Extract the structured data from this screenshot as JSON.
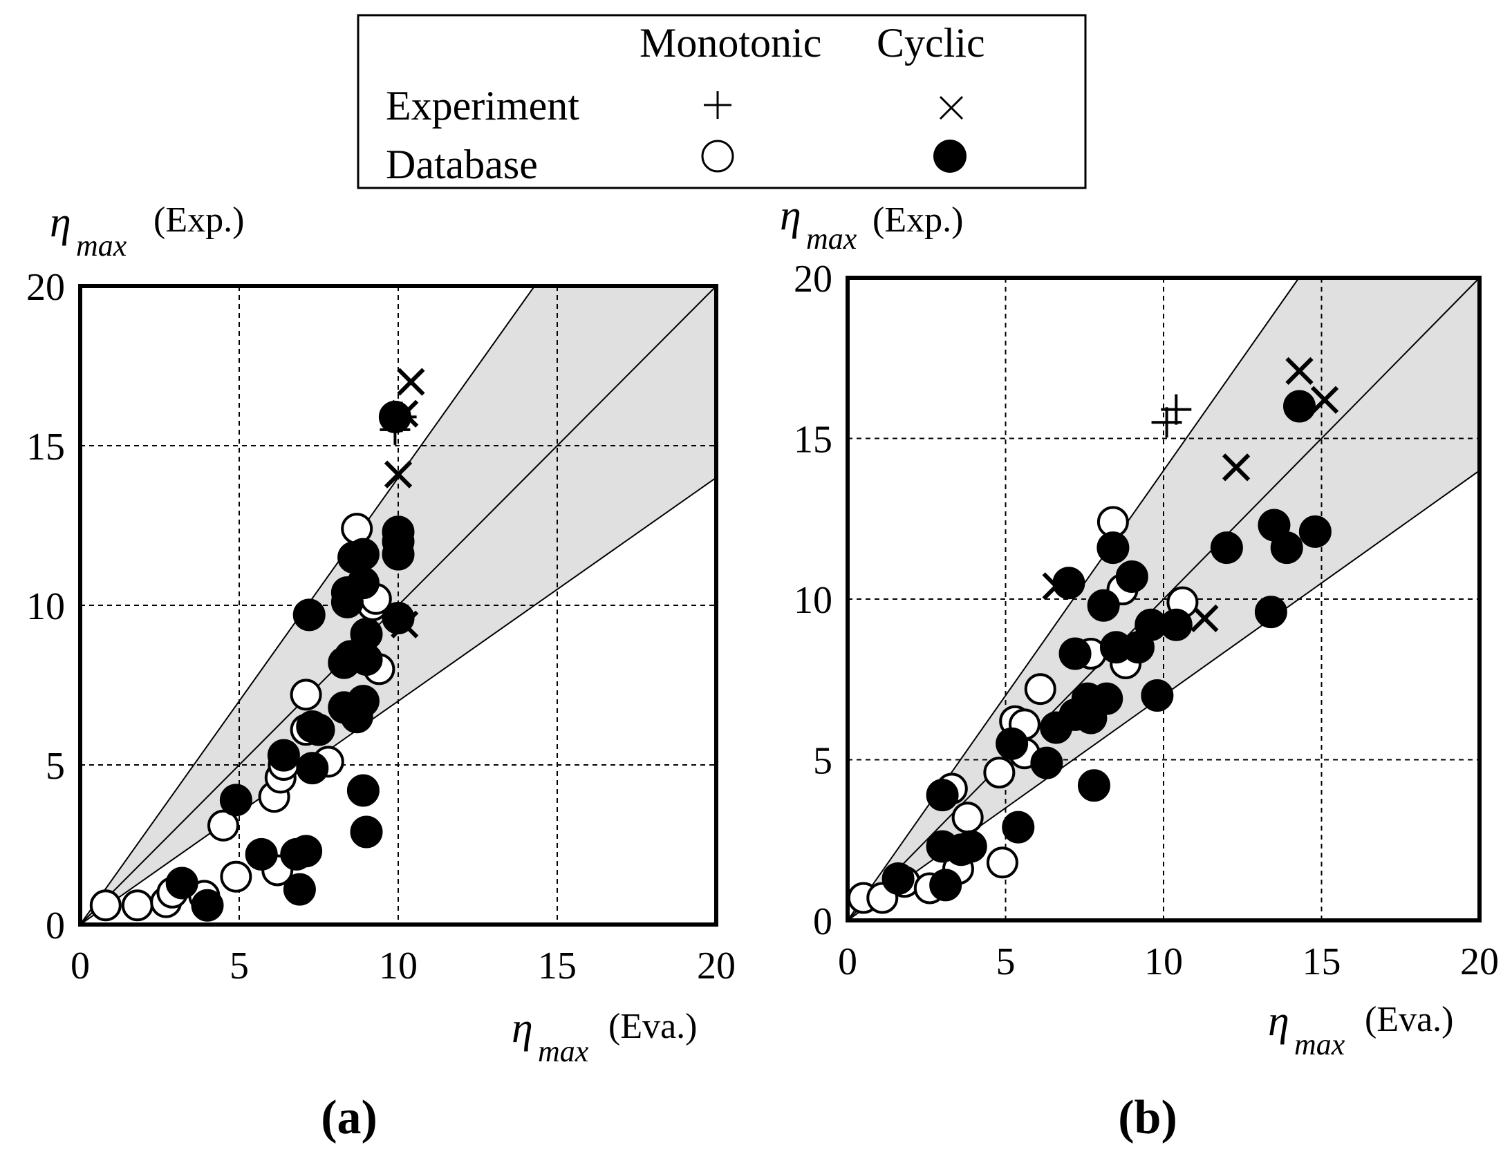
{
  "legend": {
    "col_monotonic": "Monotonic",
    "col_cyclic": "Cyclic",
    "row_experiment": "Experiment",
    "row_database": "Database"
  },
  "colors": {
    "band": "#e0e0e0",
    "ink": "#000000",
    "open_fill": "#ffffff"
  },
  "chart_data": [
    {
      "type": "scatter",
      "panel_label": "(a)",
      "ylabel_symbol": "η",
      "ylabel_sub": "max",
      "ylabel_note": "(Exp.)",
      "xlabel_symbol": "η",
      "xlabel_sub": "max",
      "xlabel_note": "(Eva.)",
      "xlim": [
        0,
        20
      ],
      "ylim": [
        0,
        20
      ],
      "xticks": [
        0,
        5,
        10,
        15,
        20
      ],
      "yticks": [
        0,
        5,
        10,
        15,
        20
      ],
      "tick_labels": [
        "0",
        "5",
        "10",
        "15",
        "20"
      ],
      "grid": true,
      "reference_lines": [
        1.4,
        1.0,
        0.7
      ],
      "shaded_band": [
        0.7,
        1.4
      ],
      "series": [
        {
          "name": "Experiment Monotonic",
          "marker": "plus",
          "points": [
            [
              9.9,
              15.5
            ],
            [
              10.1,
              15.9
            ]
          ]
        },
        {
          "name": "Experiment Cyclic",
          "marker": "cross",
          "points": [
            [
              10.4,
              17.0
            ],
            [
              10.2,
              16.0
            ],
            [
              10.0,
              14.1
            ],
            [
              10.2,
              9.4
            ]
          ]
        },
        {
          "name": "Database Monotonic",
          "marker": "open_circle",
          "points": [
            [
              0.8,
              0.6
            ],
            [
              1.8,
              0.6
            ],
            [
              2.7,
              0.7
            ],
            [
              2.9,
              1.0
            ],
            [
              3.9,
              0.9
            ],
            [
              4.9,
              1.5
            ],
            [
              4.5,
              3.1
            ],
            [
              6.1,
              4.0
            ],
            [
              6.3,
              4.6
            ],
            [
              6.4,
              5.0
            ],
            [
              6.2,
              1.7
            ],
            [
              7.8,
              5.1
            ],
            [
              7.1,
              6.1
            ],
            [
              7.1,
              7.2
            ],
            [
              8.7,
              12.4
            ],
            [
              9.2,
              10.0
            ],
            [
              9.3,
              10.2
            ],
            [
              9.4,
              8.0
            ]
          ]
        },
        {
          "name": "Database Cyclic",
          "marker": "filled_circle",
          "points": [
            [
              3.2,
              1.3
            ],
            [
              4.0,
              0.6
            ],
            [
              4.9,
              3.9
            ],
            [
              5.7,
              2.2
            ],
            [
              6.4,
              5.3
            ],
            [
              6.8,
              2.2
            ],
            [
              6.9,
              1.1
            ],
            [
              7.1,
              2.3
            ],
            [
              7.2,
              9.7
            ],
            [
              7.3,
              4.9
            ],
            [
              7.3,
              6.2
            ],
            [
              7.5,
              6.1
            ],
            [
              8.3,
              6.8
            ],
            [
              8.3,
              8.2
            ],
            [
              8.4,
              10.4
            ],
            [
              8.4,
              10.1
            ],
            [
              8.5,
              8.4
            ],
            [
              8.6,
              11.5
            ],
            [
              8.7,
              6.5
            ],
            [
              8.9,
              11.6
            ],
            [
              8.9,
              10.7
            ],
            [
              8.9,
              7.0
            ],
            [
              8.9,
              4.2
            ],
            [
              9.0,
              9.1
            ],
            [
              9.0,
              8.3
            ],
            [
              9.0,
              2.9
            ],
            [
              9.9,
              15.9
            ],
            [
              10.0,
              12.3
            ],
            [
              10.0,
              12.0
            ],
            [
              10.0,
              11.6
            ],
            [
              10.0,
              9.6
            ]
          ]
        }
      ]
    },
    {
      "type": "scatter",
      "panel_label": "(b)",
      "ylabel_symbol": "η",
      "ylabel_sub": "max",
      "ylabel_note": "(Exp.)",
      "xlabel_symbol": "η",
      "xlabel_sub": "max",
      "xlabel_note": "(Eva.)",
      "xlim": [
        0,
        20
      ],
      "ylim": [
        0,
        20
      ],
      "xticks": [
        0,
        5,
        10,
        15,
        20
      ],
      "yticks": [
        0,
        5,
        10,
        15,
        20
      ],
      "tick_labels": [
        "0",
        "5",
        "10",
        "15",
        "20"
      ],
      "grid": true,
      "reference_lines": [
        1.4,
        1.0,
        0.7
      ],
      "shaded_band": [
        0.7,
        1.4
      ],
      "series": [
        {
          "name": "Experiment Monotonic",
          "marker": "plus",
          "points": [
            [
              10.1,
              15.5
            ],
            [
              10.4,
              15.9
            ]
          ]
        },
        {
          "name": "Experiment Cyclic",
          "marker": "cross",
          "points": [
            [
              14.3,
              17.1
            ],
            [
              15.1,
              16.2
            ],
            [
              12.3,
              14.1
            ],
            [
              11.3,
              9.4
            ],
            [
              6.6,
              10.4
            ]
          ]
        },
        {
          "name": "Database Monotonic",
          "marker": "open_circle",
          "points": [
            [
              0.5,
              0.7
            ],
            [
              1.1,
              0.7
            ],
            [
              1.8,
              1.2
            ],
            [
              2.6,
              1.0
            ],
            [
              3.5,
              1.6
            ],
            [
              3.3,
              4.1
            ],
            [
              3.8,
              3.2
            ],
            [
              4.9,
              1.8
            ],
            [
              4.8,
              4.6
            ],
            [
              5.3,
              6.2
            ],
            [
              5.6,
              5.2
            ],
            [
              5.6,
              6.1
            ],
            [
              6.1,
              7.2
            ],
            [
              7.7,
              8.3
            ],
            [
              8.4,
              12.4
            ],
            [
              8.7,
              10.3
            ],
            [
              8.8,
              8.0
            ],
            [
              10.6,
              9.9
            ]
          ]
        },
        {
          "name": "Database Cyclic",
          "marker": "filled_circle",
          "points": [
            [
              1.6,
              1.3
            ],
            [
              3.1,
              1.1
            ],
            [
              3.0,
              2.3
            ],
            [
              3.0,
              3.9
            ],
            [
              3.6,
              2.2
            ],
            [
              3.9,
              2.3
            ],
            [
              5.2,
              5.5
            ],
            [
              5.4,
              2.9
            ],
            [
              6.3,
              4.9
            ],
            [
              6.6,
              6.0
            ],
            [
              7.0,
              10.5
            ],
            [
              7.2,
              6.4
            ],
            [
              7.2,
              8.3
            ],
            [
              7.5,
              6.6
            ],
            [
              7.6,
              6.9
            ],
            [
              7.7,
              6.3
            ],
            [
              7.8,
              4.2
            ],
            [
              8.1,
              9.8
            ],
            [
              8.2,
              6.9
            ],
            [
              8.4,
              11.6
            ],
            [
              8.5,
              8.5
            ],
            [
              9.0,
              10.7
            ],
            [
              9.2,
              8.5
            ],
            [
              9.6,
              9.2
            ],
            [
              9.8,
              7.0
            ],
            [
              10.4,
              9.2
            ],
            [
              12.0,
              11.6
            ],
            [
              13.4,
              9.6
            ],
            [
              13.5,
              12.3
            ],
            [
              13.9,
              11.6
            ],
            [
              14.3,
              16.0
            ],
            [
              14.8,
              12.1
            ]
          ]
        }
      ]
    }
  ]
}
